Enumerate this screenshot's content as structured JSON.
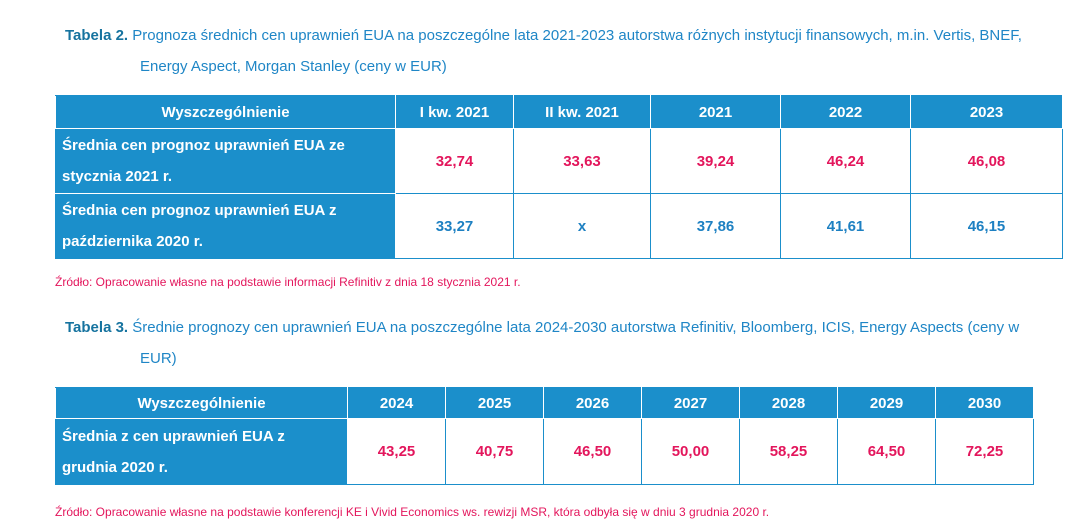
{
  "table2": {
    "label": "Tabela 2.",
    "caption": "Prognoza średnich cen uprawnień EUA na poszczególne lata 2021-2023 autorstwa różnych instytucji finansowych, m.in. Vertis, BNEF, Energy Aspect, Morgan Stanley (ceny w EUR)",
    "header": [
      "Wyszczególnienie",
      "I kw. 2021",
      "II kw. 2021",
      "2021",
      "2022",
      "2023"
    ],
    "rows": [
      [
        "Średnia cen prognoz uprawnień EUA ze stycznia 2021 r.",
        "32,74",
        "33,63",
        "39,24",
        "46,24",
        "46,08"
      ],
      [
        "Średnia cen prognoz uprawnień EUA z października 2020 r.",
        "33,27",
        "x",
        "37,86",
        "41,61",
        "46,15"
      ]
    ],
    "source": "Źródło: Opracowanie własne na podstawie informacji Refinitiv z dnia 18 stycznia 2021 r."
  },
  "table3": {
    "label": "Tabela 3.",
    "caption": "Średnie prognozy cen uprawnień EUA na poszczególne lata 2024-2030 autorstwa Refinitiv, Bloomberg, ICIS, Energy Aspects (ceny w EUR)",
    "header": [
      "Wyszczególnienie",
      "2024",
      "2025",
      "2026",
      "2027",
      "2028",
      "2029",
      "2030"
    ],
    "rows": [
      [
        "Średnia z cen uprawnień EUA z grudnia 2020 r.",
        "43,25",
        "40,75",
        "46,50",
        "50,00",
        "58,25",
        "64,50",
        "72,25"
      ]
    ],
    "source": "Źródło: Opracowanie własne na podstawie konferencji KE i Vivid Economics ws. rewizji MSR, która odbyła się w dniu 3 grudnia 2020 r."
  }
}
